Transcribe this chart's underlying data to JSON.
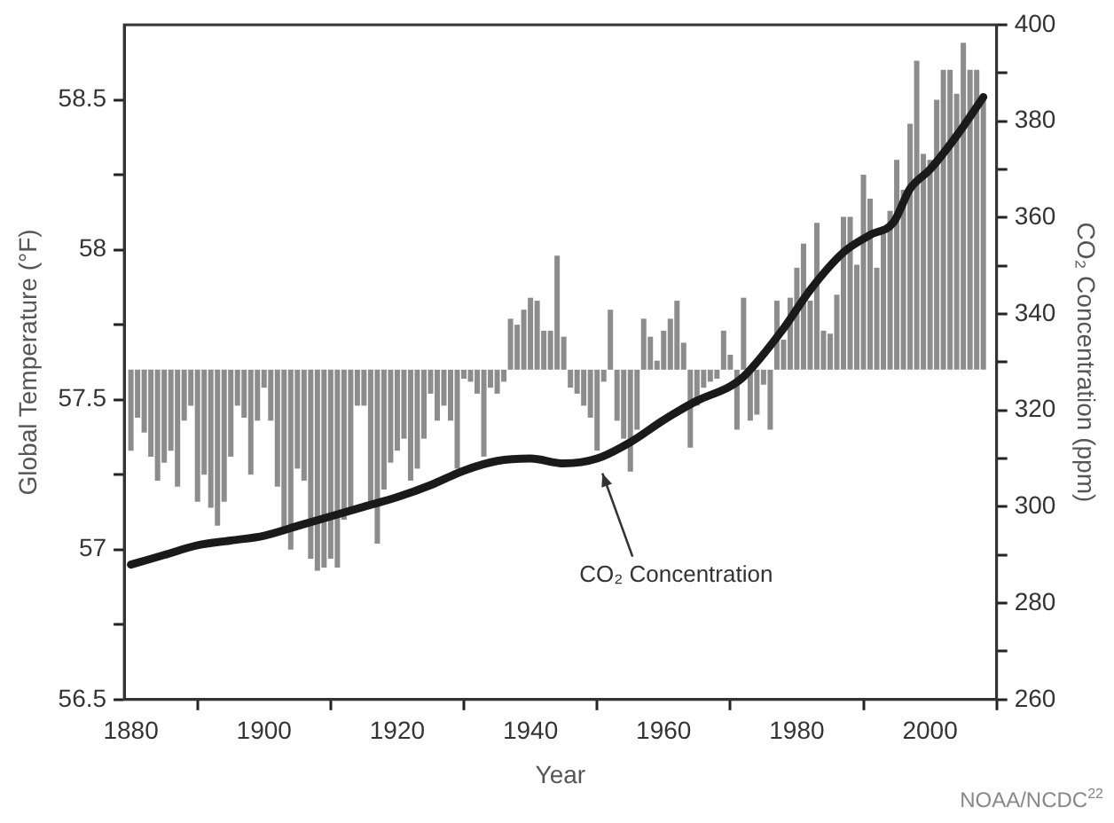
{
  "chart_data": {
    "type": "bar",
    "xlabel": "Year",
    "ylabel": "Global Temperature (°F)",
    "y2label": "CO₂ Concentration (ppm)",
    "xlim": [
      1879,
      2010
    ],
    "xticks": [
      1880,
      1900,
      1920,
      1940,
      1960,
      1980,
      2000
    ],
    "ylim": [
      56.5,
      58.75
    ],
    "yticks": [
      56.5,
      {
        "value": 56.75,
        "label": null
      },
      57.0,
      {
        "value": 57.25,
        "label": null
      },
      57.5,
      {
        "value": 57.75,
        "label": null
      },
      58.0,
      {
        "value": 58.25,
        "label": null
      },
      58.5
    ],
    "y2lim": [
      260,
      400
    ],
    "y2ticks": [
      260,
      {
        "value": 270,
        "label": null
      },
      280,
      {
        "value": 290,
        "label": null
      },
      300,
      {
        "value": 310,
        "label": null
      },
      320,
      {
        "value": 330,
        "label": null
      },
      340,
      {
        "value": 350,
        "label": null
      },
      360,
      {
        "value": 370,
        "label": null
      },
      380,
      {
        "value": 390,
        "label": null
      },
      400
    ],
    "grid": false,
    "legend": false,
    "series": [
      {
        "color": "#8c8c8c",
        "x": [
          1880,
          1881,
          1882,
          1883,
          1884,
          1885,
          1886,
          1887,
          1888,
          1889,
          1890,
          1891,
          1892,
          1893,
          1894,
          1895,
          1896,
          1897,
          1898,
          1899,
          1900,
          1901,
          1902,
          1903,
          1904,
          1905,
          1906,
          1907,
          1908,
          1909,
          1910,
          1911,
          1912,
          1913,
          1914,
          1915,
          1916,
          1917,
          1918,
          1919,
          1920,
          1921,
          1922,
          1923,
          1924,
          1925,
          1926,
          1927,
          1928,
          1929,
          1930,
          1931,
          1932,
          1933,
          1934,
          1935,
          1936,
          1937,
          1938,
          1939,
          1940,
          1941,
          1942,
          1943,
          1944,
          1945,
          1946,
          1947,
          1948,
          1949,
          1950,
          1951,
          1952,
          1953,
          1954,
          1955,
          1956,
          1957,
          1958,
          1959,
          1960,
          1961,
          1962,
          1963,
          1964,
          1965,
          1966,
          1967,
          1968,
          1969,
          1970,
          1971,
          1972,
          1973,
          1974,
          1975,
          1976,
          1977,
          1978,
          1979,
          1980,
          1981,
          1982,
          1983,
          1984,
          1985,
          1986,
          1987,
          1988,
          1989,
          1990,
          1991,
          1992,
          1993,
          1994,
          1995,
          1996,
          1997,
          1998,
          1999,
          2000,
          2001,
          2002,
          2003,
          2004,
          2005,
          2006,
          2007,
          2008
        ],
        "values": [
          -0.27,
          -0.16,
          -0.21,
          -0.29,
          -0.37,
          -0.31,
          -0.27,
          -0.39,
          -0.17,
          -0.12,
          -0.44,
          -0.35,
          -0.46,
          -0.52,
          -0.44,
          -0.29,
          -0.12,
          -0.16,
          -0.35,
          -0.17,
          -0.06,
          -0.17,
          -0.39,
          -0.54,
          -0.6,
          -0.33,
          -0.37,
          -0.63,
          -0.67,
          -0.66,
          -0.63,
          -0.66,
          -0.5,
          -0.46,
          -0.12,
          -0.12,
          -0.44,
          -0.58,
          -0.4,
          -0.31,
          -0.27,
          -0.23,
          -0.37,
          -0.33,
          -0.23,
          -0.08,
          -0.17,
          -0.12,
          -0.17,
          -0.33,
          -0.03,
          -0.04,
          -0.08,
          -0.29,
          -0.06,
          -0.08,
          -0.04,
          0.17,
          0.15,
          0.2,
          0.24,
          0.23,
          0.13,
          0.13,
          0.38,
          0.11,
          -0.06,
          -0.08,
          -0.12,
          -0.16,
          -0.27,
          -0.04,
          0.2,
          -0.17,
          -0.23,
          -0.34,
          -0.2,
          0.17,
          0.11,
          0.03,
          0.13,
          0.17,
          0.23,
          0.09,
          -0.26,
          -0.12,
          -0.06,
          -0.04,
          -0.03,
          0.13,
          0.05,
          -0.2,
          0.24,
          -0.17,
          -0.15,
          -0.05,
          -0.2,
          0.23,
          0.1,
          0.24,
          0.34,
          0.42,
          0.23,
          0.49,
          0.13,
          0.12,
          0.25,
          0.51,
          0.51,
          0.35,
          0.65,
          0.57,
          0.34,
          0.46,
          0.53,
          0.7,
          0.6,
          0.82,
          1.03,
          0.72,
          0.7,
          0.9,
          1.0,
          1.0,
          0.92,
          1.09,
          1.0,
          1.0,
          0.92
        ],
        "base": [
          57.6,
          57.6,
          57.6,
          57.6,
          57.6,
          57.6,
          57.6,
          57.6,
          57.6,
          57.6,
          57.6,
          57.6,
          57.6,
          57.6,
          57.6,
          57.6,
          57.6,
          57.6,
          57.6,
          57.6,
          57.6,
          57.6,
          57.6,
          57.6,
          57.6,
          57.6,
          57.6,
          57.6,
          57.6,
          57.6,
          57.6,
          57.6,
          57.6,
          57.6,
          57.6,
          57.6,
          57.6,
          57.6,
          57.6,
          57.6,
          57.6,
          57.6,
          57.6,
          57.6,
          57.6,
          57.6,
          57.6,
          57.6,
          57.6,
          57.6,
          57.6,
          57.6,
          57.6,
          57.6,
          57.6,
          57.6,
          57.6,
          57.6,
          57.6,
          57.6,
          57.6,
          57.6,
          57.6,
          57.6,
          57.6,
          57.6,
          57.6,
          57.6,
          57.6,
          57.6,
          57.6,
          57.6,
          57.6,
          57.6,
          57.6,
          57.6,
          57.6,
          57.6,
          57.6,
          57.6,
          57.6,
          57.6,
          57.6,
          57.6,
          57.6,
          57.6,
          57.6,
          57.6,
          57.6,
          57.6,
          57.6,
          57.6,
          57.6,
          57.6,
          57.6,
          57.6,
          57.6,
          57.6,
          57.6,
          57.6,
          57.6,
          57.6,
          57.6,
          57.6,
          57.6,
          57.6,
          57.6,
          57.6,
          57.6,
          57.6,
          57.6,
          57.6,
          57.6,
          57.6,
          57.6,
          57.6,
          57.6,
          57.6,
          57.6,
          57.6,
          57.6,
          57.6,
          57.6,
          57.6,
          57.6,
          57.6,
          57.6,
          57.6,
          57.6
        ]
      },
      {
        "type": "line",
        "axis": "y2",
        "color": "#1a1a1a",
        "x": [
          1880,
          1885,
          1890,
          1895,
          1900,
          1905,
          1910,
          1915,
          1920,
          1925,
          1930,
          1935,
          1940,
          1945,
          1950,
          1955,
          1960,
          1965,
          1970,
          1972,
          1978,
          1982,
          1987,
          1991,
          1994.5,
          1997,
          2000,
          2004,
          2008
        ],
        "values": [
          288,
          290,
          292,
          293,
          294,
          296,
          298,
          300,
          302,
          304.5,
          307.5,
          309.5,
          310,
          309,
          310,
          313.4,
          318,
          322,
          325,
          327,
          337,
          345,
          352.8,
          356.4,
          359,
          366,
          370,
          377,
          385
        ]
      }
    ],
    "annotations": [
      {
        "text": "CO₂ Concentration",
        "x": 1950,
        "y": 57.29
      },
      "NOAA/NCDC$^{22}$"
    ]
  }
}
